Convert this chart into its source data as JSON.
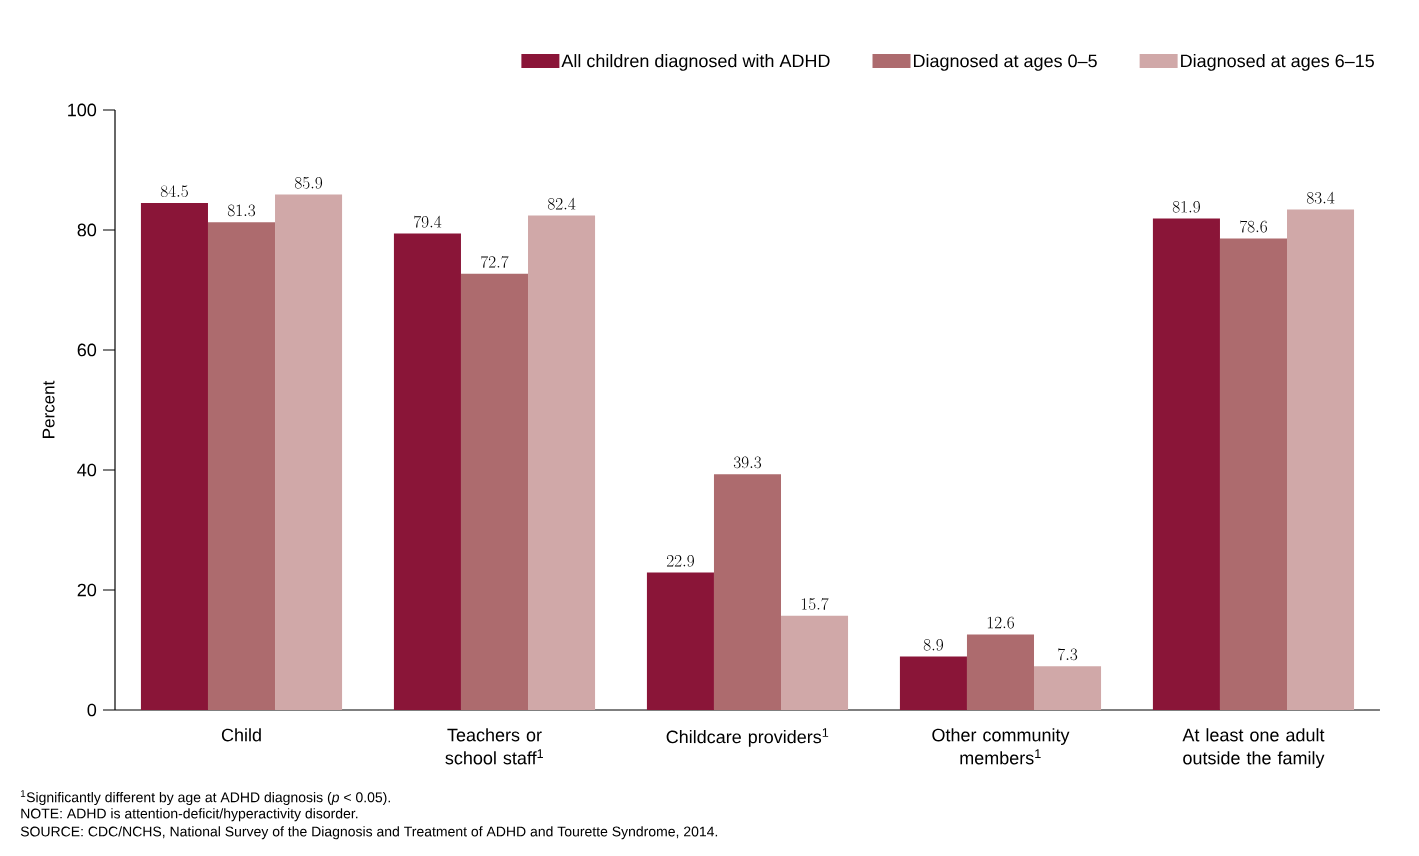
{
  "chart_data": {
    "type": "bar",
    "categories": [
      "Child",
      "Teachers or school staff$^{1}$",
      "Childcare providers$^{1}$",
      "Other community members$^{1}$",
      "At least one adult outside the family"
    ],
    "series": [
      {
        "name": "All children diagnosed with ADHD",
        "color": "#8a1538",
        "values": [
          84.5,
          79.4,
          22.9,
          8.9,
          81.9
        ]
      },
      {
        "name": "Diagnosed at ages 0–5",
        "color": "#ad6b6e",
        "values": [
          81.3,
          72.7,
          39.3,
          12.6,
          78.6
        ]
      },
      {
        "name": "Diagnosed at ages 6–15",
        "color": "#d0a8a8",
        "values": [
          85.9,
          82.4,
          15.7,
          7.3,
          83.4
        ]
      }
    ],
    "ylabel": "Percent",
    "ylim": [
      0,
      100
    ],
    "yticks": [
      0,
      20,
      40,
      60,
      80,
      100
    ],
    "data_labels": true,
    "legend": "top",
    "grid": false,
    "annotations": [
      "$^{1}$Significantly different by age at ADHD diagnosis (*p* < 0.05).",
      "NOTE: ADHD is attention-deficit/hyperactivity disorder.",
      "SOURCE: CDC/NCHS, National Survey of the Diagnosis and Treatment of ADHD and Tourette Syndrome, 2014."
    ]
  }
}
